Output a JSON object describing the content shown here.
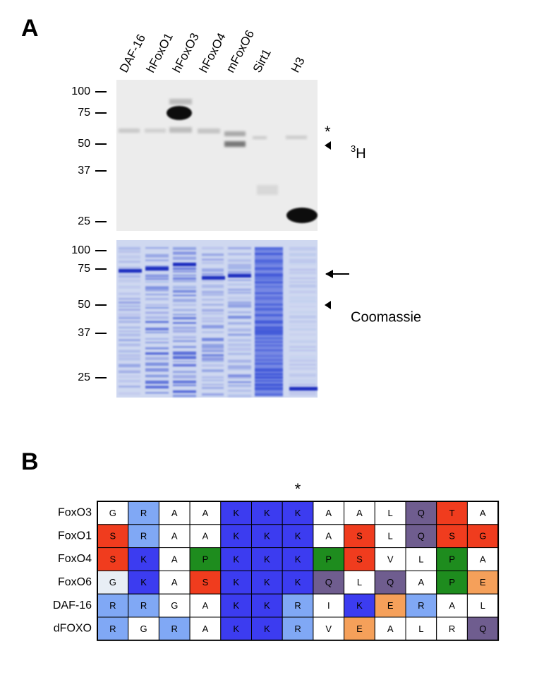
{
  "panel_a": {
    "label": "A",
    "lanes": [
      "DAF-16",
      "hFoxO1",
      "hFoxO3",
      "hFoxO4",
      "mFoxO6",
      "Sirt1",
      "H3"
    ],
    "gel_3h": {
      "markers": [
        100,
        75,
        50,
        37,
        25
      ],
      "asterisk": "*",
      "label_superscript": "3",
      "label_text": "H"
    },
    "gel_coomassie": {
      "markers": [
        100,
        75,
        50,
        37,
        25
      ],
      "label": "Coomassie"
    }
  },
  "panel_b": {
    "label": "B",
    "asterisk": "*",
    "colors": {
      "w": "#ffffff",
      "lb": "#80a8f5",
      "b": "#3c3cf0",
      "r": "#f03c1e",
      "q": "#6f5d8f",
      "g": "#1e8c1e",
      "o": "#f5a05a",
      "gy": "#e8eef5"
    },
    "rows": [
      {
        "name": "FoxO3",
        "residues": [
          "G",
          "R",
          "A",
          "A",
          "K",
          "K",
          "K",
          "A",
          "A",
          "L",
          "Q",
          "T",
          "A"
        ],
        "colors": [
          "w",
          "lb",
          "w",
          "w",
          "b",
          "b",
          "b",
          "w",
          "w",
          "w",
          "q",
          "r",
          "w"
        ]
      },
      {
        "name": "FoxO1",
        "residues": [
          "S",
          "R",
          "A",
          "A",
          "K",
          "K",
          "K",
          "A",
          "S",
          "L",
          "Q",
          "S",
          "G"
        ],
        "colors": [
          "r",
          "lb",
          "w",
          "w",
          "b",
          "b",
          "b",
          "w",
          "r",
          "w",
          "q",
          "r",
          "r"
        ]
      },
      {
        "name": "FoxO4",
        "residues": [
          "S",
          "K",
          "A",
          "P",
          "K",
          "K",
          "K",
          "P",
          "S",
          "V",
          "L",
          "P",
          "A"
        ],
        "colors": [
          "r",
          "b",
          "w",
          "g",
          "b",
          "b",
          "b",
          "g",
          "r",
          "w",
          "w",
          "g",
          "w"
        ]
      },
      {
        "name": "FoxO6",
        "residues": [
          "G",
          "K",
          "A",
          "S",
          "K",
          "K",
          "K",
          "Q",
          "L",
          "Q",
          "A",
          "P",
          "E"
        ],
        "colors": [
          "gy",
          "b",
          "w",
          "r",
          "b",
          "b",
          "b",
          "q",
          "w",
          "q",
          "w",
          "g",
          "o"
        ]
      },
      {
        "name": "DAF-16",
        "residues": [
          "R",
          "R",
          "G",
          "A",
          "K",
          "K",
          "R",
          "I",
          "K",
          "E",
          "R",
          "A",
          "L"
        ],
        "colors": [
          "lb",
          "lb",
          "w",
          "w",
          "b",
          "b",
          "lb",
          "w",
          "b",
          "o",
          "lb",
          "w",
          "w"
        ]
      },
      {
        "name": "dFOXO",
        "residues": [
          "R",
          "G",
          "R",
          "A",
          "K",
          "K",
          "R",
          "V",
          "E",
          "A",
          "L",
          "R",
          "Q"
        ],
        "colors": [
          "lb",
          "w",
          "lb",
          "w",
          "b",
          "b",
          "lb",
          "w",
          "o",
          "w",
          "w",
          "w",
          "q"
        ]
      }
    ]
  }
}
